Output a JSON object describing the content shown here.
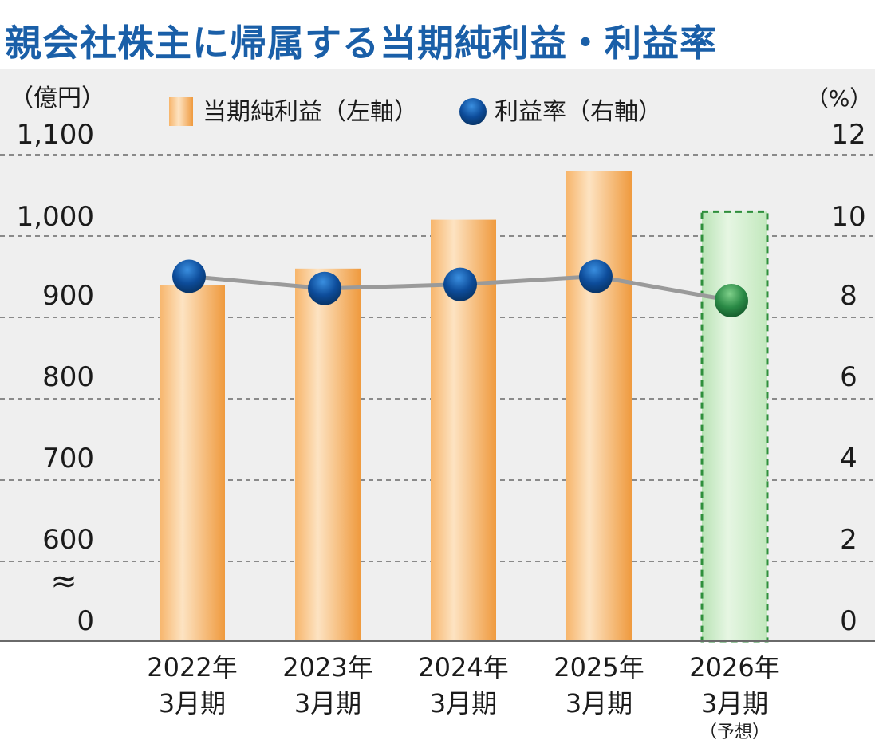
{
  "title": "親会社株主に帰属する当期純利益・利益率",
  "colors": {
    "bar": "#f3a24a",
    "forecast_bar": "#c7ebc3",
    "forecast_border": "#2f8f3c",
    "marker": "#0b3f82",
    "forecast_marker": "#1c6c36",
    "line": "#9a9a9a",
    "plot_bg": "#f0f0f0",
    "grid": "#8a8a8a"
  },
  "chart_data": {
    "type": "bar",
    "left_unit": "（億円）",
    "right_unit": "（%）",
    "legend": {
      "bar_label": "当期純利益（左軸）",
      "marker_label": "利益率（右軸）"
    },
    "left_ticks": [
      "0",
      "600",
      "700",
      "800",
      "900",
      "1,000",
      "1,100"
    ],
    "right_ticks": [
      "0",
      "2",
      "4",
      "6",
      "8",
      "10",
      "12"
    ],
    "axis_break": "≈",
    "categories": [
      {
        "year": "2022年",
        "period": "3月期",
        "note": "",
        "forecast": false
      },
      {
        "year": "2023年",
        "period": "3月期",
        "note": "",
        "forecast": false
      },
      {
        "year": "2024年",
        "period": "3月期",
        "note": "",
        "forecast": false
      },
      {
        "year": "2025年",
        "period": "3月期",
        "note": "",
        "forecast": false
      },
      {
        "year": "2026年",
        "period": "3月期",
        "note": "（予想）",
        "forecast": true
      }
    ],
    "series": [
      {
        "name": "当期純利益",
        "axis": "left",
        "values": [
          940,
          960,
          1020,
          1080,
          1030
        ]
      },
      {
        "name": "利益率",
        "axis": "right",
        "values": [
          9.0,
          8.7,
          8.8,
          9.0,
          8.4
        ]
      }
    ],
    "left_ylim": [
      600,
      1100
    ],
    "right_ylim": [
      0,
      12
    ],
    "grid": true
  }
}
